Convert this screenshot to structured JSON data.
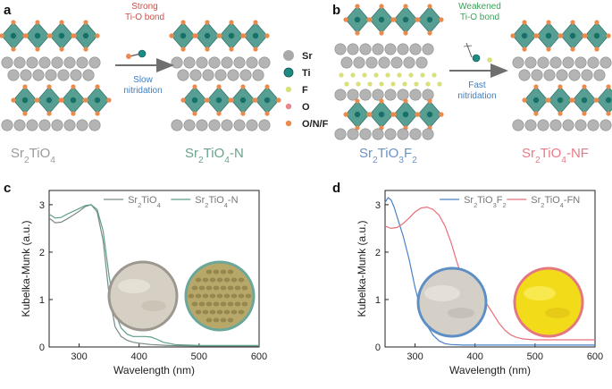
{
  "panels": {
    "a": {
      "letter": "a",
      "arrow_top_line1": "Strong",
      "arrow_top_line2": "Ti-O bond",
      "arrow_bottom_line1": "Slow",
      "arrow_bottom_line2": "nitridation",
      "left_label": "Sr2TiO4",
      "right_label": "Sr2TiO4-N"
    },
    "b": {
      "letter": "b",
      "arrow_top_line1": "Weakened",
      "arrow_top_line2": "Ti-O bond",
      "arrow_bottom_line1": "Fast",
      "arrow_bottom_line2": "nitridation",
      "left_label": "Sr2TiO3F2",
      "right_label": "Sr2TiO4-NF"
    },
    "legend": [
      {
        "label": "Sr",
        "color": "#a9a9a9"
      },
      {
        "label": "Ti",
        "color": "#1f8a82"
      },
      {
        "label": "F",
        "color": "#d8e07a"
      },
      {
        "label": "O",
        "color": "#e8868a"
      },
      {
        "label": "O/N/F",
        "color": "#ec8a4c"
      }
    ],
    "c": {
      "letter": "c"
    },
    "d": {
      "letter": "d"
    }
  },
  "colors": {
    "gray_label": "#9a9a9a",
    "green_label": "#6aa38a",
    "blue_label": "#6a93c4",
    "pink_label": "#ea7a86",
    "strong_red": "#c8504a",
    "weak_green": "#3aa35a",
    "blue_text": "#3f7fc0",
    "octa": "#4f9a8e"
  },
  "chart_data": [
    {
      "type": "line",
      "xlabel": "Wavelength (nm)",
      "ylabel": "Kubelka-Munk (a.u.)",
      "xlim": [
        250,
        600
      ],
      "ylim": [
        0,
        3.3
      ],
      "xticks": [
        300,
        400,
        500,
        600
      ],
      "yticks": [
        0,
        1,
        2,
        3
      ],
      "legend_position": "top-right",
      "series": [
        {
          "name": "Sr2TiO4",
          "color": "#7a8a86",
          "x": [
            250,
            260,
            270,
            280,
            290,
            300,
            310,
            320,
            330,
            340,
            350,
            360,
            370,
            380,
            390,
            400,
            420,
            450,
            500,
            550,
            600
          ],
          "y": [
            2.72,
            2.62,
            2.63,
            2.7,
            2.78,
            2.86,
            2.96,
            3.0,
            2.85,
            2.25,
            1.1,
            0.42,
            0.22,
            0.14,
            0.1,
            0.08,
            0.05,
            0.03,
            0.02,
            0.02,
            0.02
          ]
        },
        {
          "name": "Sr2TiO4-N",
          "color": "#5f9e8a",
          "x": [
            250,
            260,
            270,
            280,
            290,
            300,
            310,
            320,
            330,
            340,
            350,
            360,
            370,
            380,
            390,
            400,
            410,
            420,
            430,
            440,
            460,
            500,
            550,
            600
          ],
          "y": [
            2.8,
            2.72,
            2.73,
            2.8,
            2.86,
            2.92,
            2.98,
            3.0,
            2.9,
            2.45,
            1.5,
            0.72,
            0.4,
            0.27,
            0.22,
            0.22,
            0.22,
            0.21,
            0.16,
            0.1,
            0.05,
            0.03,
            0.03,
            0.03
          ]
        }
      ]
    },
    {
      "type": "line",
      "xlabel": "Wavelength (nm)",
      "ylabel": "Kubelka-Munk (a.u.)",
      "xlim": [
        250,
        600
      ],
      "ylim": [
        0,
        3.3
      ],
      "xticks": [
        300,
        400,
        500,
        600
      ],
      "yticks": [
        0,
        1,
        2,
        3
      ],
      "legend_position": "top-right",
      "series": [
        {
          "name": "Sr2TiO3F2",
          "color": "#4a82c8",
          "x": [
            250,
            255,
            260,
            265,
            270,
            280,
            290,
            300,
            310,
            320,
            330,
            340,
            350,
            360,
            380,
            400,
            450,
            500,
            550,
            600
          ],
          "y": [
            3.05,
            3.15,
            3.1,
            2.95,
            2.75,
            2.35,
            1.85,
            1.25,
            0.75,
            0.45,
            0.25,
            0.13,
            0.07,
            0.05,
            0.04,
            0.04,
            0.04,
            0.04,
            0.04,
            0.04
          ]
        },
        {
          "name": "Sr2TiO4-FN",
          "color": "#e8707a",
          "x": [
            250,
            260,
            270,
            280,
            290,
            300,
            310,
            320,
            330,
            340,
            350,
            360,
            370,
            380,
            390,
            400,
            410,
            420,
            430,
            440,
            450,
            460,
            470,
            480,
            500,
            550,
            600
          ],
          "y": [
            2.55,
            2.5,
            2.52,
            2.6,
            2.72,
            2.85,
            2.93,
            2.95,
            2.9,
            2.78,
            2.55,
            2.2,
            1.78,
            1.4,
            1.15,
            1.05,
            1.0,
            0.9,
            0.7,
            0.5,
            0.35,
            0.25,
            0.2,
            0.17,
            0.15,
            0.15,
            0.15
          ]
        }
      ]
    }
  ]
}
